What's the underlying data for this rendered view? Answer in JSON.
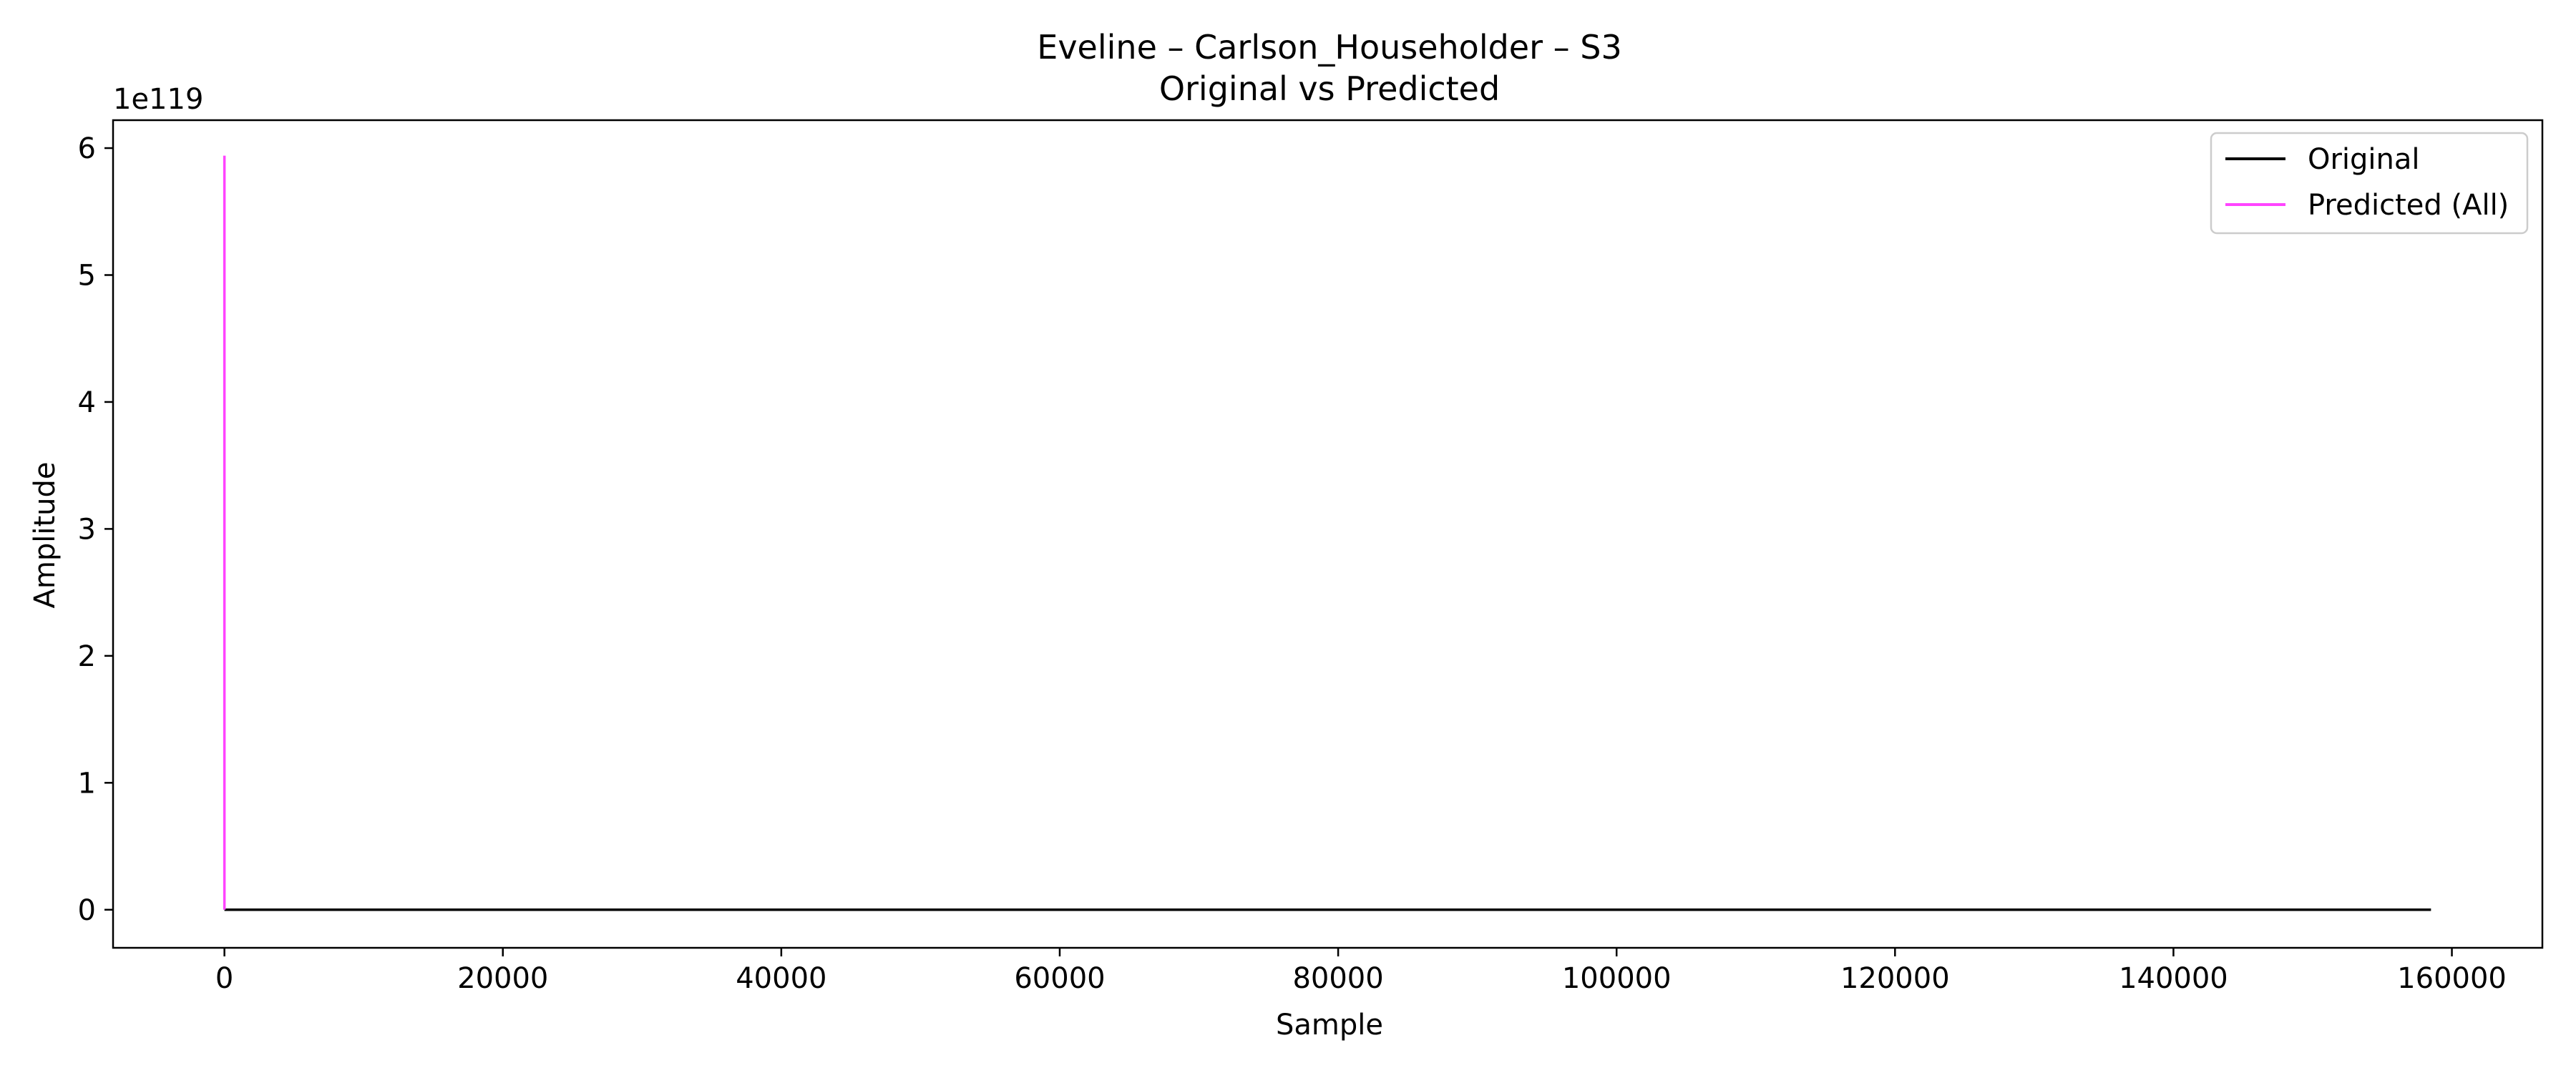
{
  "chart_data": {
    "type": "line",
    "title": "Eveline – Carlson_Householder – S3",
    "subtitle": "Original vs Predicted",
    "xlabel": "Sample",
    "ylabel": "Amplitude",
    "y_offset_label": "1e119",
    "xlim": [
      -8000,
      166500
    ],
    "ylim": [
      -0.3,
      6.22
    ],
    "x_ticks": [
      0,
      20000,
      40000,
      60000,
      80000,
      100000,
      120000,
      140000,
      160000
    ],
    "x_tick_labels": [
      "0",
      "20000",
      "40000",
      "60000",
      "80000",
      "100000",
      "120000",
      "140000",
      "160000"
    ],
    "y_ticks": [
      0,
      1,
      2,
      3,
      4,
      5,
      6
    ],
    "y_tick_labels": [
      "0",
      "1",
      "2",
      "3",
      "4",
      "5",
      "6"
    ],
    "grid": false,
    "legend_position": "top-right",
    "series": [
      {
        "name": "Original",
        "color": "#000000",
        "x": [
          0,
          158500
        ],
        "y": [
          0,
          0
        ]
      },
      {
        "name": "Predicted (All)",
        "color": "#ff44ff",
        "x": [
          0,
          0,
          0
        ],
        "y": [
          0,
          5.94,
          0
        ]
      }
    ]
  }
}
